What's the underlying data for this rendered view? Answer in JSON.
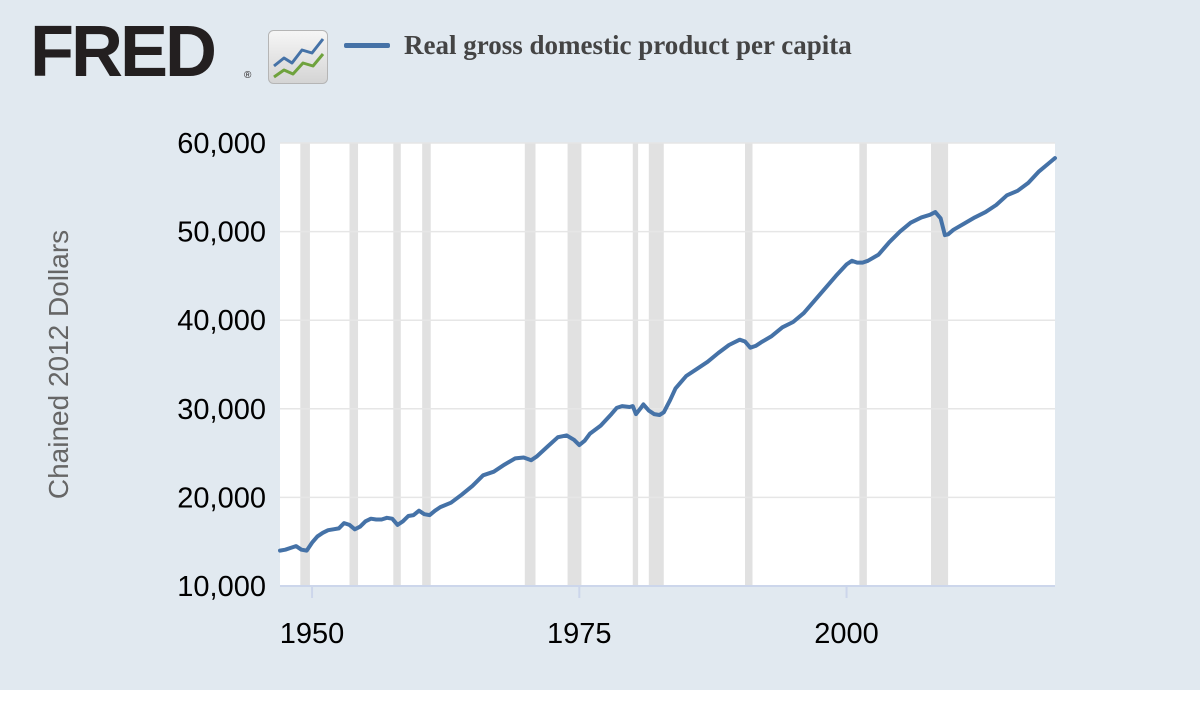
{
  "brand": {
    "name": "FRED",
    "registered": "®",
    "icon": "rising-line-chart-icon"
  },
  "colors": {
    "background": "#e1e9f0",
    "series_line": "#4572a7",
    "recession_band": "#e1e1e1",
    "gridline": "#e6e6e6"
  },
  "chart_data": {
    "type": "line",
    "title": "",
    "xlabel": "",
    "ylabel": "Chained 2012 Dollars",
    "xlim": [
      1947,
      2019.5
    ],
    "ylim": [
      10000,
      60000
    ],
    "x_ticks": [
      1950,
      1975,
      2000
    ],
    "x_tick_labels": [
      "1950",
      "1975",
      "2000"
    ],
    "y_ticks": [
      10000,
      20000,
      30000,
      40000,
      50000,
      60000
    ],
    "y_tick_labels": [
      "10,000",
      "20,000",
      "30,000",
      "40,000",
      "50,000",
      "60,000"
    ],
    "grid": true,
    "legend": "top",
    "recessions": [
      [
        1948.9,
        1949.8
      ],
      [
        1953.5,
        1954.3
      ],
      [
        1957.6,
        1958.3
      ],
      [
        1960.3,
        1961.1
      ],
      [
        1969.9,
        1970.9
      ],
      [
        1973.9,
        1975.2
      ],
      [
        1980.0,
        1980.5
      ],
      [
        1981.5,
        1982.9
      ],
      [
        1990.5,
        1991.2
      ],
      [
        2001.2,
        2001.9
      ],
      [
        2007.9,
        2009.5
      ]
    ],
    "series": [
      {
        "name": "Real gross domestic product per capita",
        "x": [
          1947.0,
          1947.5,
          1948.0,
          1948.5,
          1949.0,
          1949.5,
          1950.0,
          1950.5,
          1951.0,
          1951.5,
          1952.0,
          1952.5,
          1953.0,
          1953.5,
          1954.0,
          1954.5,
          1955.0,
          1955.5,
          1956.0,
          1956.5,
          1957.0,
          1957.5,
          1958.0,
          1958.5,
          1959.0,
          1959.5,
          1960.0,
          1960.5,
          1961.0,
          1961.5,
          1962.0,
          1963.0,
          1964.0,
          1965.0,
          1966.0,
          1967.0,
          1968.0,
          1969.0,
          1969.8,
          1970.5,
          1971.0,
          1972.0,
          1973.0,
          1973.8,
          1974.5,
          1975.0,
          1975.5,
          1976.0,
          1977.0,
          1978.0,
          1978.5,
          1979.0,
          1979.7,
          1980.0,
          1980.3,
          1980.7,
          1981.0,
          1981.5,
          1982.0,
          1982.5,
          1982.9,
          1983.5,
          1984.0,
          1985.0,
          1986.0,
          1987.0,
          1988.0,
          1989.0,
          1990.0,
          1990.5,
          1991.0,
          1991.5,
          1992.0,
          1993.0,
          1994.0,
          1995.0,
          1996.0,
          1997.0,
          1998.0,
          1999.0,
          2000.0,
          2000.5,
          2001.0,
          2001.5,
          2002.0,
          2003.0,
          2004.0,
          2005.0,
          2006.0,
          2007.0,
          2007.8,
          2008.3,
          2008.8,
          2009.2,
          2009.5,
          2010.0,
          2011.0,
          2012.0,
          2013.0,
          2014.0,
          2015.0,
          2016.0,
          2017.0,
          2018.0,
          2019.0,
          2019.5
        ],
        "values": [
          14000,
          14100,
          14300,
          14500,
          14100,
          14000,
          14900,
          15600,
          16000,
          16300,
          16400,
          16500,
          17100,
          16900,
          16400,
          16700,
          17300,
          17600,
          17500,
          17500,
          17700,
          17600,
          16900,
          17300,
          17900,
          18000,
          18500,
          18100,
          18000,
          18500,
          18900,
          19400,
          20300,
          21300,
          22500,
          22900,
          23700,
          24400,
          24500,
          24200,
          24600,
          25700,
          26800,
          27000,
          26500,
          25900,
          26400,
          27200,
          28100,
          29400,
          30100,
          30300,
          30200,
          30300,
          29400,
          30000,
          30500,
          29800,
          29400,
          29300,
          29600,
          31000,
          32300,
          33700,
          34500,
          35300,
          36300,
          37200,
          37800,
          37600,
          36900,
          37100,
          37500,
          38200,
          39200,
          39800,
          40800,
          42200,
          43600,
          45000,
          46300,
          46700,
          46500,
          46500,
          46700,
          47400,
          48800,
          50000,
          51000,
          51600,
          51900,
          52200,
          51500,
          49600,
          49700,
          50200,
          50900,
          51600,
          52200,
          53000,
          54100,
          54600,
          55500,
          56800,
          57800,
          58300
        ]
      }
    ]
  }
}
